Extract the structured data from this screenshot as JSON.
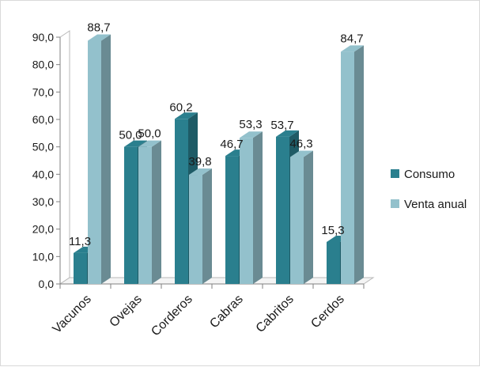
{
  "chart_data": {
    "type": "bar",
    "categories": [
      "Vacunos",
      "Ovejas",
      "Corderos",
      "Cabras",
      "Cabritos",
      "Cerdos"
    ],
    "series": [
      {
        "name": "Consumo",
        "values": [
          11.3,
          50.0,
          60.2,
          46.7,
          53.7,
          15.3
        ],
        "color": "#2a7f8e"
      },
      {
        "name": "Venta anual",
        "values": [
          88.7,
          50.0,
          39.8,
          53.3,
          46.3,
          84.7
        ],
        "color": "#93c1cc"
      }
    ],
    "data_labels": {
      "Consumo": [
        "11,3",
        "50,0",
        "60,2",
        "46,7",
        "53,7",
        "15,3"
      ],
      "Venta anual": [
        "88,7",
        "50,0",
        "39,8",
        "53,3",
        "46,3",
        "84,7"
      ]
    },
    "y_ticks": [
      "0,0",
      "10,0",
      "20,0",
      "30,0",
      "40,0",
      "50,0",
      "60,0",
      "70,0",
      "80,0",
      "90,0"
    ],
    "ylim": [
      0,
      90
    ],
    "style": "3d-clustered-column",
    "grid": false,
    "legend_position": "right"
  }
}
